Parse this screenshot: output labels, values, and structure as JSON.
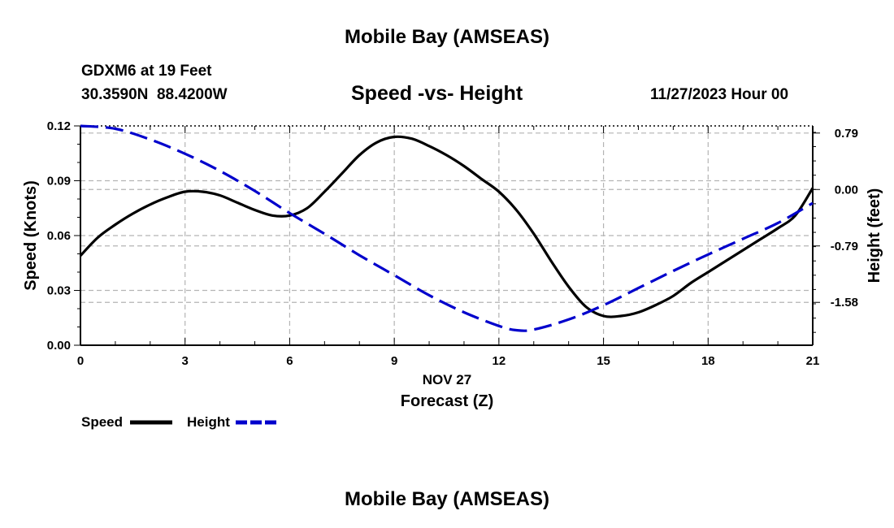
{
  "header": {
    "title": "Mobile Bay (AMSEAS)",
    "station": "GDXM6 at 19 Feet",
    "location": "30.3590N  88.4200W",
    "subtitle": "Speed -vs- Height",
    "datetime": "11/27/2023 Hour 00"
  },
  "footer": {
    "title": "Mobile Bay (AMSEAS)"
  },
  "legend": {
    "speed_label": "Speed",
    "height_label": "Height"
  },
  "colors": {
    "speed": "#000000",
    "height": "#0000cc",
    "grid": "#b4b4b4"
  },
  "chart_data": {
    "type": "line",
    "title": "Speed -vs- Height",
    "xlabel": "Forecast (Z)",
    "xlabel_date": "NOV 27",
    "ylabel": "Speed (Knots)",
    "y2label": "Height (feet)",
    "xlim": [
      0,
      21
    ],
    "ylim": [
      0,
      0.12
    ],
    "y2lim": [
      -2.18,
      0.89
    ],
    "x_ticks": [
      "0",
      "3",
      "6",
      "9",
      "12",
      "15",
      "18",
      "21"
    ],
    "y_ticks": [
      "0.00",
      "0.03",
      "0.06",
      "0.09",
      "0.12"
    ],
    "y2_ticks": [
      "0.79",
      "0.00",
      "-0.79",
      "-1.58"
    ],
    "grid": true,
    "legend_position": "bottom-left",
    "series": [
      {
        "name": "Speed",
        "axis": "left",
        "style": "solid",
        "x": [
          0,
          0.5,
          1,
          1.5,
          2,
          2.5,
          3,
          3.5,
          4,
          4.5,
          5,
          5.5,
          6,
          6.5,
          7,
          7.5,
          8,
          8.5,
          9,
          9.5,
          10,
          10.5,
          11,
          11.5,
          12,
          12.5,
          13,
          13.5,
          14,
          14.5,
          15,
          15.5,
          16,
          16.5,
          17,
          17.5,
          18,
          18.5,
          19,
          19.5,
          20,
          20.5,
          21
        ],
        "values": [
          0.049,
          0.059,
          0.066,
          0.072,
          0.077,
          0.081,
          0.084,
          0.084,
          0.082,
          0.078,
          0.074,
          0.071,
          0.071,
          0.075,
          0.084,
          0.094,
          0.104,
          0.111,
          0.114,
          0.113,
          0.109,
          0.104,
          0.098,
          0.091,
          0.084,
          0.074,
          0.061,
          0.046,
          0.032,
          0.021,
          0.016,
          0.016,
          0.018,
          0.022,
          0.027,
          0.034,
          0.04,
          0.046,
          0.052,
          0.058,
          0.064,
          0.071,
          0.086
        ]
      },
      {
        "name": "Height",
        "axis": "right",
        "style": "dashed",
        "x": [
          0,
          1,
          2,
          3,
          4,
          5,
          6,
          7,
          8,
          9,
          10,
          11,
          12,
          12.5,
          13,
          14,
          15,
          16,
          17,
          18,
          19,
          20,
          21
        ],
        "values": [
          0.89,
          0.85,
          0.7,
          0.5,
          0.26,
          -0.02,
          -0.33,
          -0.62,
          -0.92,
          -1.2,
          -1.48,
          -1.72,
          -1.91,
          -1.97,
          -1.96,
          -1.82,
          -1.62,
          -1.38,
          -1.14,
          -0.91,
          -0.69,
          -0.47,
          -0.19
        ]
      }
    ]
  }
}
